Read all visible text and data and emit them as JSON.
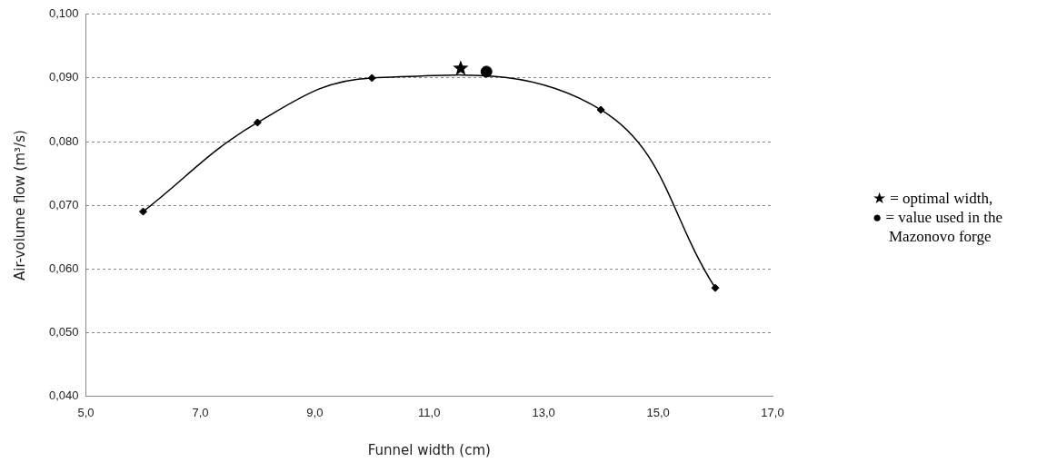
{
  "chart_data": {
    "type": "line",
    "xlabel": "Funnel width (cm)",
    "ylabel": "Air-volume flow (m³/s)",
    "series": [
      {
        "type": "line",
        "color": "#000000",
        "marker": "diamond",
        "x": [
          6,
          8,
          10,
          14,
          16
        ],
        "values": [
          0.069,
          0.083,
          0.09,
          0.085,
          0.057
        ]
      },
      {
        "type": "scatter",
        "color": "#000000",
        "marker": "star",
        "x": [
          11.55
        ],
        "values": [
          0.0915
        ]
      },
      {
        "type": "scatter",
        "color": "#000000",
        "marker": "circle",
        "x": [
          12
        ],
        "values": [
          0.091
        ]
      }
    ],
    "xlim": [
      5,
      17
    ],
    "xticks": [
      {
        "value": 5,
        "label": "5,0"
      },
      {
        "value": 7,
        "label": "7,0"
      },
      {
        "value": 9,
        "label": "9,0"
      },
      {
        "value": 11,
        "label": "11,0"
      },
      {
        "value": 13,
        "label": "13,0"
      },
      {
        "value": 15,
        "label": "15,0"
      },
      {
        "value": 17,
        "label": "17,0"
      }
    ],
    "ylim": [
      0.04,
      0.1
    ],
    "yticks": [
      {
        "value": 0.04,
        "label": "0,040"
      },
      {
        "value": 0.05,
        "label": "0,050"
      },
      {
        "value": 0.06,
        "label": "0,060"
      },
      {
        "value": 0.07,
        "label": "0,070"
      },
      {
        "value": 0.08,
        "label": "0,080"
      },
      {
        "value": 0.09,
        "label": "0,090"
      },
      {
        "value": 0.1,
        "label": "0,100"
      }
    ],
    "grid": "y",
    "line_style": "solid",
    "legend": false,
    "annotations": [
      "★ = optimal width,",
      "● = value used in the Mazonovo forge"
    ]
  }
}
